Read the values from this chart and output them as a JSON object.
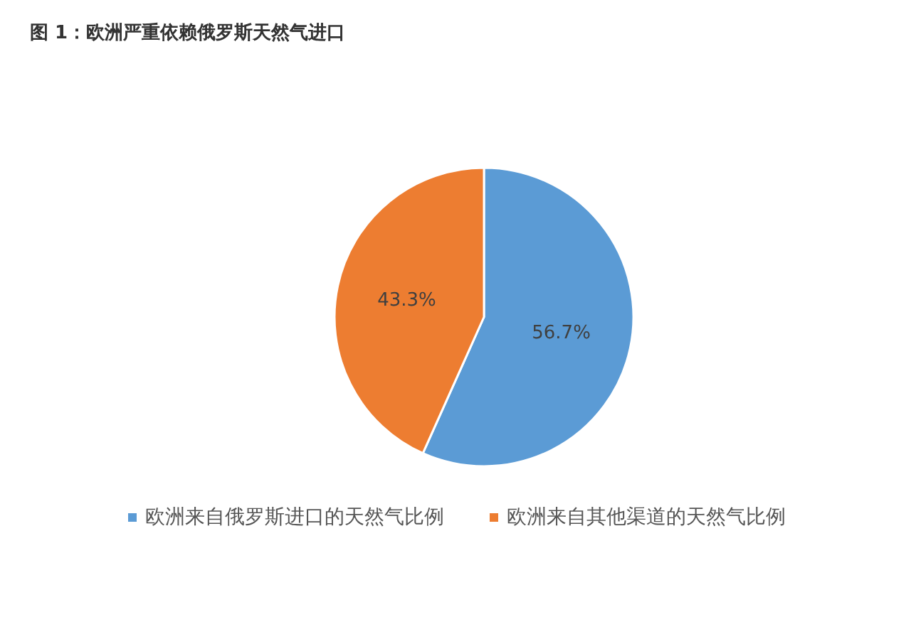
{
  "chart_data": {
    "type": "pie",
    "title": "图 1：欧洲严重依赖俄罗斯天然气进口",
    "categories": [
      "欧洲来自俄罗斯进口的天然气比例",
      "欧洲来自其他渠道的天然气比例"
    ],
    "values": [
      56.7,
      43.3
    ],
    "colors": [
      "#5b9bd5",
      "#ed7d31"
    ],
    "value_labels": [
      "56.7%",
      "43.3%"
    ],
    "legend": "bottom"
  }
}
